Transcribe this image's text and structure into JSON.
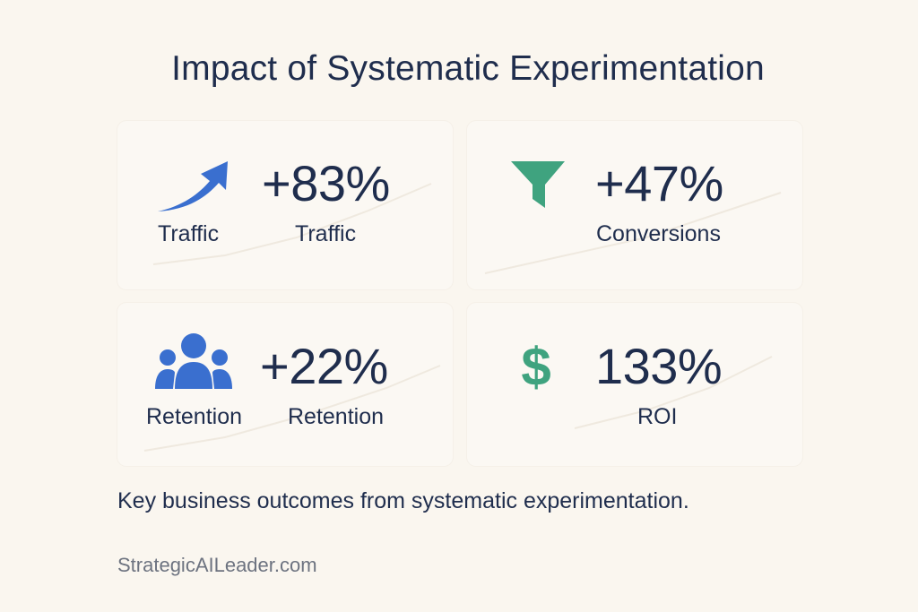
{
  "title": "Impact of Systematic Experimentation",
  "cards": [
    {
      "value": "+83%",
      "label": "Traffic",
      "icon_label": "Traffic",
      "icon": "trend-up-arrow-icon",
      "icon_color": "#3a6fcf"
    },
    {
      "value": "+47%",
      "label": "Conversions",
      "icon": "funnel-icon",
      "icon_color": "#3fa37f"
    },
    {
      "value": "+22%",
      "label": "Retention",
      "icon_label": "Retention",
      "icon": "users-group-icon",
      "icon_color": "#3a6fcf"
    },
    {
      "value": "133%",
      "label": "ROI",
      "icon": "dollar-icon",
      "icon_color": "#3fa37f"
    }
  ],
  "caption": "Key business outcomes from systematic experimentation.",
  "footer": "StrategicAILeader.com",
  "colors": {
    "background": "#faf6ef",
    "text": "#1f2d4d",
    "blue": "#3a6fcf",
    "green": "#3fa37f"
  }
}
